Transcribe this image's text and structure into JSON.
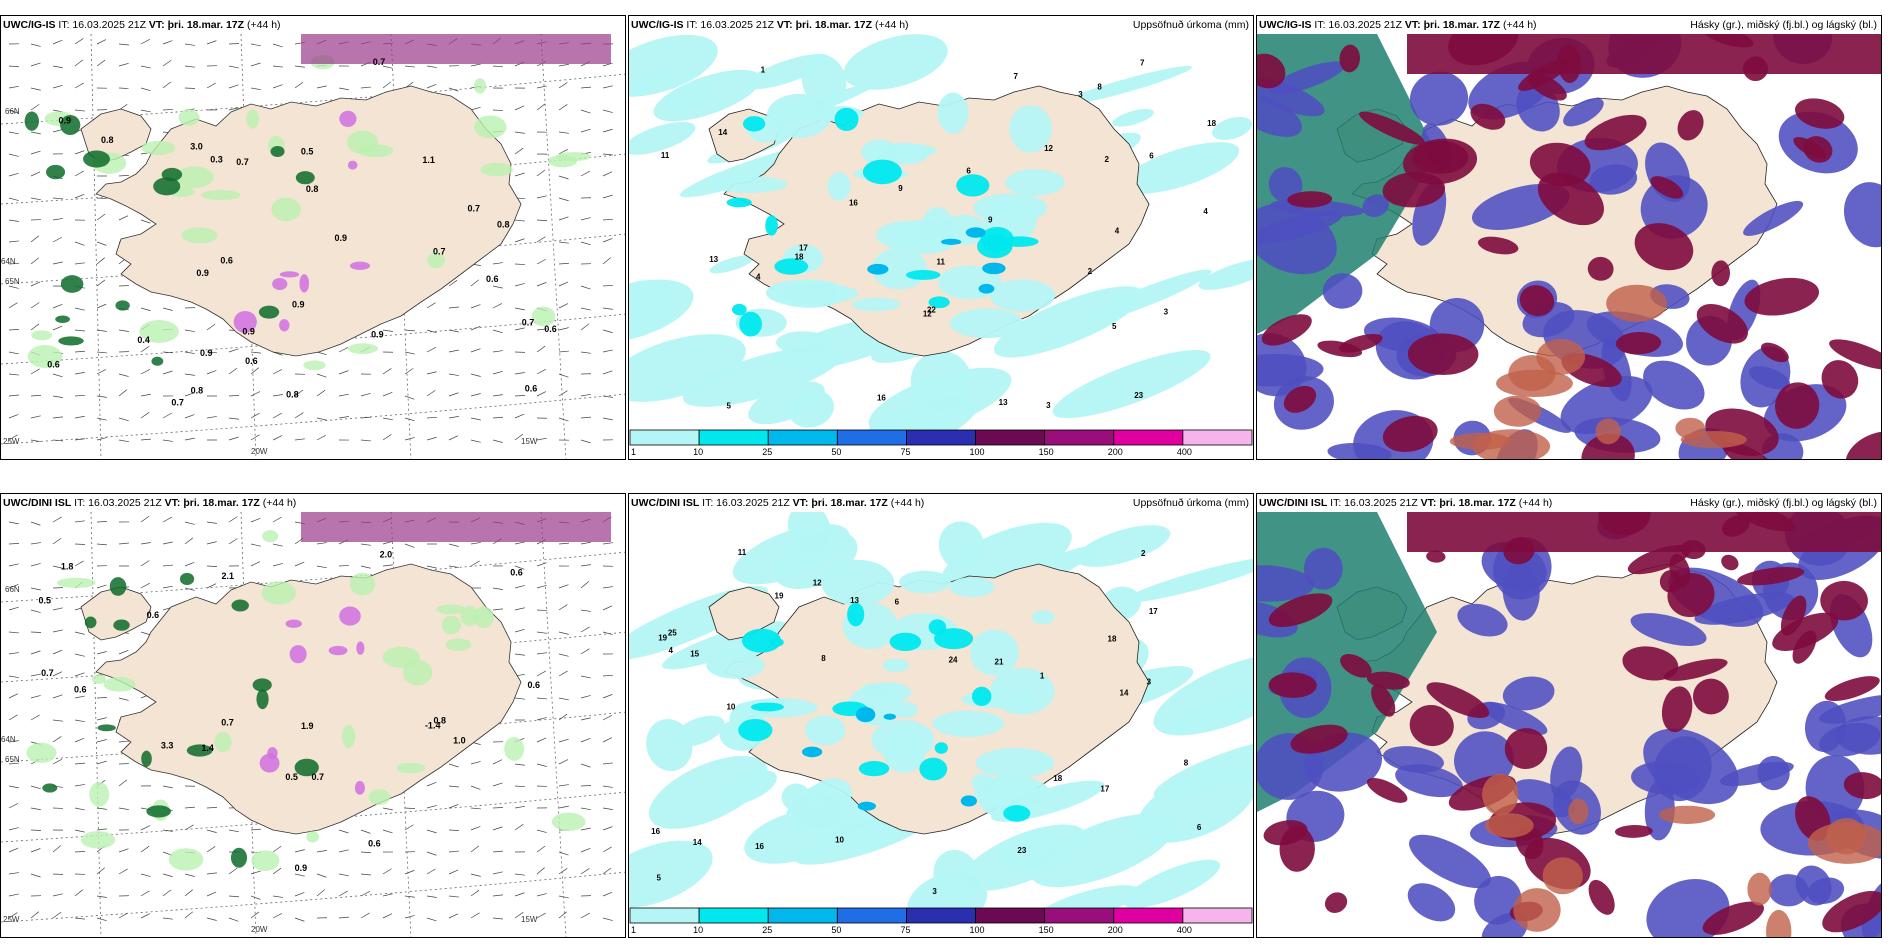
{
  "rows": [
    {
      "model": "UWC/IG-IS",
      "init": "IT: 16.03.2025 21Z",
      "valid_prefix": "VT:",
      "valid_day": "þri. 18.mar. 17Z",
      "lead": "(+44 h)",
      "wind_values": [
        "0.7",
        "0.6",
        "0.8",
        "0.7",
        "0.3",
        "0.6",
        "0.9",
        "0.4",
        "0.9",
        "0.8",
        "0.7",
        "0.6",
        "0.9",
        "0.8",
        "3.0",
        "0.9",
        "0.7",
        "0.6",
        "0.8",
        "0.7",
        "0.9",
        "1.1",
        "0.6",
        "0.9",
        "0.6",
        "0.9",
        "0.8",
        "0.7",
        "0.5"
      ],
      "precip_values": [
        "3",
        "5",
        "9",
        "7",
        "9",
        "3",
        "8",
        "4",
        "6",
        "4",
        "12",
        "16",
        "17",
        "18",
        "12",
        "11",
        "13",
        "18",
        "23",
        "22",
        "11",
        "13",
        "16",
        "14",
        "5",
        "4",
        "3",
        "2",
        "1",
        "7",
        "6",
        "2"
      ],
      "axis_labels": [
        "66N",
        "65N",
        "64N",
        "20W",
        "15W",
        "25W"
      ]
    },
    {
      "model": "UWC/DINI ISL",
      "init": "IT: 16.03.2025 21Z",
      "valid_prefix": "VT:",
      "valid_day": "þri. 18.mar. 17Z",
      "lead": "(+44 h)",
      "wind_values": [
        "0.5",
        "0.5",
        "0.7",
        "0.6",
        "2.0",
        "0.6",
        "1.8",
        "0.7",
        "0.6",
        "1.4",
        "0.6",
        "1.9",
        "2.1",
        "3.3",
        "0.8",
        "0.9",
        "-1.4",
        "0.7",
        "0.6",
        "1.0"
      ],
      "precip_values": [
        "3",
        "6",
        "8",
        "10",
        "14",
        "16",
        "21",
        "19",
        "18",
        "23",
        "24",
        "25",
        "17",
        "19",
        "12",
        "13",
        "15",
        "17",
        "18",
        "16",
        "14",
        "10",
        "11",
        "8",
        "5",
        "3",
        "2",
        "1",
        "6",
        "4"
      ],
      "axis_labels": [
        "66N",
        "65N",
        "64N",
        "20W",
        "15W",
        "25W"
      ]
    }
  ],
  "precip_title": "Uppsöfnuð úrkoma (mm)",
  "cloud_title": "Hásky (gr.), miðský (fj.bl.) og lágský (bl.)",
  "legend": {
    "ticks": [
      "1",
      "10",
      "25",
      "50",
      "75",
      "100",
      "150",
      "200",
      "400"
    ],
    "colors": [
      "#b4f6f6",
      "#00e8ee",
      "#00b8ec",
      "#1f6ee6",
      "#2a2fb0",
      "#6b0a52",
      "#9a0e7c",
      "#e000a0",
      "#f5b4ec"
    ]
  },
  "colors": {
    "land": "#f3e4d3",
    "precip_light": "#b4f6f6",
    "precip_mid": "#00e8ee",
    "precip_high": "#00b8ec",
    "cloud_high": "#7e0b3e",
    "cloud_mid": "#4e4fc0",
    "cloud_low": "#1f8070",
    "rain_green": "#b9f1b0",
    "rain_dark": "#0d6b2a",
    "rain_pink": "#d070e0"
  }
}
